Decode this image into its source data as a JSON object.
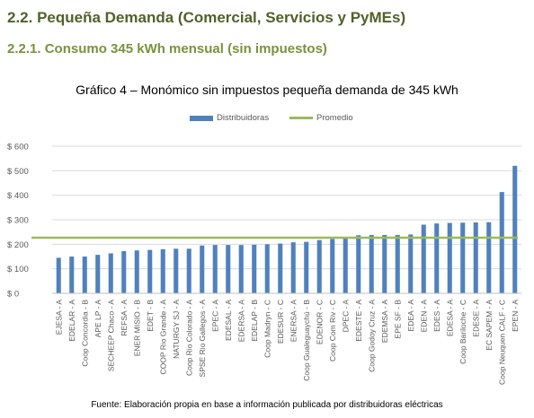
{
  "header": {
    "section_title": "2.2. Pequeña Demanda (Comercial, Servicios y PyMEs)",
    "subsection_title": "2.2.1. Consumo 345 kWh mensual (sin impuestos)"
  },
  "footer": {
    "source": "Fuente: Elaboración propia en base a información publicada por distribuidoras eléctricas"
  },
  "colors": {
    "heading": "#4f6228",
    "subheading": "#77933c",
    "bars": "#4f81bd",
    "average_line": "#9bbb59",
    "gridlines": "#d9d9d9"
  },
  "chart_data": {
    "type": "bar",
    "title": "Gráfico 4 – Monómico sin impuestos pequeña demanda de 345 kWh",
    "xlabel": "",
    "ylabel": "",
    "ylim": [
      0,
      600
    ],
    "y_ticks": [
      0,
      100,
      200,
      300,
      400,
      500,
      600
    ],
    "y_tick_labels": [
      "$ 0",
      "$ 100",
      "$ 200",
      "$ 300",
      "$ 400",
      "$ 500",
      "$ 600"
    ],
    "grid": true,
    "legend": "top-center",
    "categories": [
      "EJESA - A",
      "EDELAR - A",
      "Coop Concordia - B",
      "APE LP - A",
      "SECHEEP Chaco - A",
      "REFSA - A",
      "ENER MISIO - B",
      "EDET - B",
      "COOP Rio Grande - A",
      "NATURGY SJ - A",
      "Coop Rio Colorado - A",
      "SPSE Rio Gallegos - A",
      "EPEC - A",
      "EDESAL - A",
      "EDERSA - A",
      "EDELAP - B",
      "Coop Madryn - C",
      "EDESUR - C",
      "ENERSA - A",
      "Coop Gualeguaychú - B",
      "EDENOR - C",
      "Coop Com Riv - C",
      "DPEC - A",
      "EDESTE - A",
      "Coop Godoy Cruz - A",
      "EDEMSA - A",
      "EPE SF - B",
      "EDEA - A",
      "EDEN - A",
      "EDES - A",
      "EDESA - A",
      "Coop Bariloche - C",
      "EDESE - A",
      "EC SAPEM - A",
      "Coop Neuquen CALF - C",
      "EPEN - A"
    ],
    "series": [
      {
        "name": "Distribuidoras",
        "type": "bar",
        "values": [
          145,
          150,
          150,
          157,
          163,
          172,
          175,
          177,
          180,
          182,
          182,
          195,
          197,
          197,
          197,
          198,
          200,
          203,
          208,
          210,
          217,
          222,
          225,
          237,
          238,
          238,
          238,
          240,
          280,
          285,
          287,
          288,
          289,
          290,
          413,
          520
        ]
      },
      {
        "name": "Promedio",
        "type": "line",
        "value": 227
      }
    ]
  }
}
